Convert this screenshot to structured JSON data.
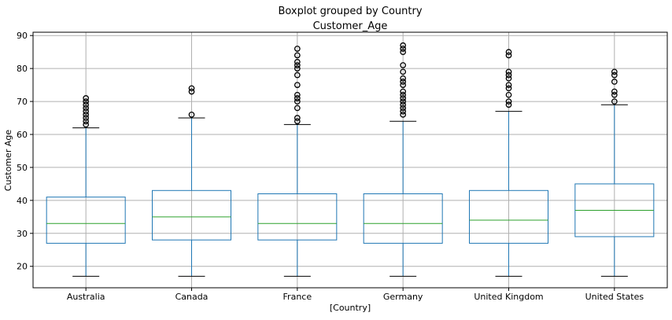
{
  "chart_data": {
    "type": "boxplot",
    "suptitle": "Boxplot grouped by Country",
    "title": "Customer_Age",
    "xlabel": "[Country]",
    "ylabel": "Customer Age",
    "ylim": [
      13.5,
      91
    ],
    "yticks": [
      20,
      30,
      40,
      50,
      60,
      70,
      80,
      90
    ],
    "grid": true,
    "colors": {
      "box": "#1f77b4",
      "median": "#2ca02c",
      "flier": "#000000",
      "cap": "#000000",
      "grid": "#b0b0b0"
    },
    "categories": [
      "Australia",
      "Canada",
      "France",
      "Germany",
      "United Kingdom",
      "United States"
    ],
    "boxes": [
      {
        "category": "Australia",
        "whisker_low": 17,
        "q1": 27,
        "median": 33,
        "q3": 41,
        "whisker_high": 62,
        "fliers": [
          63,
          64,
          65,
          66,
          67,
          68,
          69,
          70,
          71
        ]
      },
      {
        "category": "Canada",
        "whisker_low": 17,
        "q1": 28,
        "median": 35,
        "q3": 43,
        "whisker_high": 65,
        "fliers": [
          66,
          73,
          74
        ]
      },
      {
        "category": "France",
        "whisker_low": 17,
        "q1": 28,
        "median": 33,
        "q3": 42,
        "whisker_high": 63,
        "fliers": [
          64,
          65,
          68,
          70,
          71,
          72,
          75,
          78,
          80,
          81,
          82,
          84,
          86
        ]
      },
      {
        "category": "Germany",
        "whisker_low": 17,
        "q1": 27,
        "median": 33,
        "q3": 42,
        "whisker_high": 64,
        "fliers": [
          66,
          67,
          68,
          69,
          70,
          71,
          72,
          73,
          75,
          76,
          77,
          79,
          81,
          85,
          86,
          87
        ]
      },
      {
        "category": "United Kingdom",
        "whisker_low": 17,
        "q1": 27,
        "median": 34,
        "q3": 43,
        "whisker_high": 67,
        "fliers": [
          69,
          70,
          72,
          74,
          75,
          77,
          78,
          79,
          84,
          85
        ]
      },
      {
        "category": "United States",
        "whisker_low": 17,
        "q1": 29,
        "median": 37,
        "q3": 45,
        "whisker_high": 69,
        "fliers": [
          70,
          72,
          73,
          76,
          78,
          79
        ]
      }
    ]
  }
}
